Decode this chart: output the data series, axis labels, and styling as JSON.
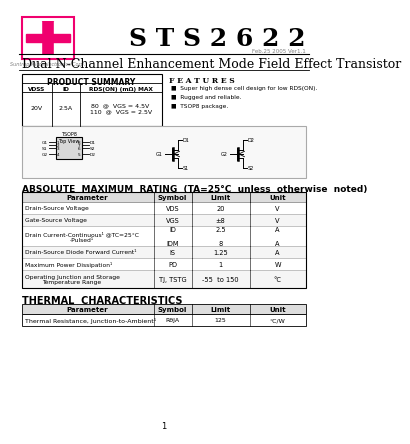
{
  "title_part": "S T S 2 6 2 2",
  "subtitle": "Dual N-Channel Enhancement Mode Field Effect Transistor",
  "company": "Suntrop Microelectronics Corp.",
  "date_version": "Feb.25 2005 Ver1.1",
  "logo_color": "#F0006E",
  "product_summary_title": "PRODUCT SUMMARY",
  "product_summary_headers": [
    "VDSS",
    "ID",
    "RDS(ON) (mΩ) MAX"
  ],
  "product_summary_row": [
    "20V",
    "2.5A",
    "80  @  VGS = 4.5V\n110  @  VGS = 2.5V"
  ],
  "features_title": "F E A T U R E S",
  "features": [
    "Super high dense cell design for low RDS(ON).",
    "Rugged and reliable.",
    "TSOP8 package."
  ],
  "abs_max_title": "ABSOLUTE  MAXIMUM  RATING  (TA=25°C  unless  otherwise  noted)",
  "abs_max_headers": [
    "Parameter",
    "Symbol",
    "Limit",
    "Unit"
  ],
  "abs_max_rows": [
    [
      "Drain-Source Voltage",
      "VDS",
      "20",
      "V"
    ],
    [
      "Gate-Source Voltage",
      "VGS",
      "±8",
      "V"
    ],
    [
      "Drain Current-Continuous¹ @TC=25°C\n-Pulsed¹",
      "ID\n\nIDM",
      "2.5\n\n8",
      "A\n\nA"
    ],
    [
      "Drain-Source Diode Forward Current¹",
      "IS",
      "1.25",
      "A"
    ],
    [
      "Maximum Power Dissipation¹",
      "PD",
      "1",
      "W"
    ],
    [
      "Operating Junction and Storage\nTemperature Range",
      "TJ, TSTG",
      "-55  to 150",
      "°C"
    ]
  ],
  "thermal_title": "THERMAL  CHARACTERISTICS",
  "thermal_headers": [
    "Parameter",
    "Symbol",
    "Limit",
    "Unit"
  ],
  "thermal_rows": [
    [
      "Thermal Resistance, Junction-to-Ambient¹",
      "RθJA",
      "125",
      "°C/W"
    ]
  ],
  "page_number": "1"
}
